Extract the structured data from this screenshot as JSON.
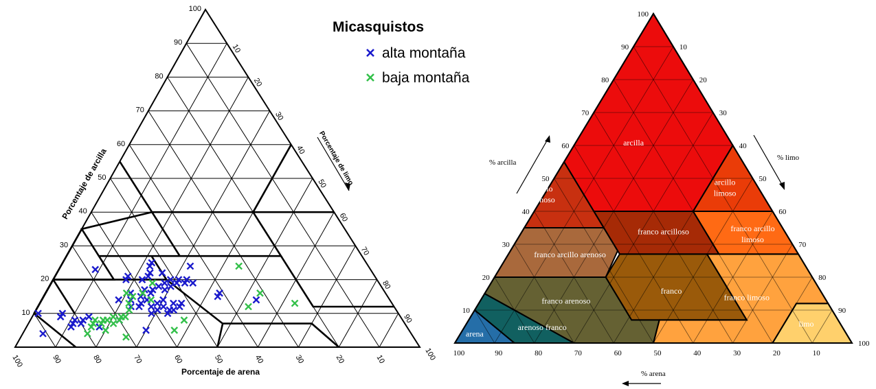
{
  "left_chart": {
    "title": "Micasquistos",
    "axis_labels": {
      "clay": "Porcentaje de arcilla",
      "silt": "Porcentaje de limo",
      "sand": "Porcentaje de arena"
    },
    "clay_ticks": [
      "10",
      "20",
      "30",
      "40",
      "50",
      "60",
      "70",
      "80",
      "90",
      "100"
    ],
    "silt_ticks": [
      "10",
      "20",
      "30",
      "40",
      "50",
      "60",
      "70",
      "80",
      "90",
      "100"
    ],
    "sand_ticks": [
      "100",
      "90",
      "80",
      "70",
      "60",
      "50",
      "40",
      "30",
      "20",
      "10"
    ],
    "colors": {
      "alta": "#1a1acc",
      "baja": "#33c04a"
    }
  },
  "chart_data": [
    {
      "type": "scatter",
      "title": "Micasquistos",
      "coordinate_system": "ternary",
      "components": [
        "sand",
        "silt",
        "clay"
      ],
      "legend_placement": "top-right",
      "series": [
        {
          "name": "alta montaña",
          "color": "#1a1acc",
          "marker": "x",
          "points": [
            {
              "sand": 76,
              "clay": 6
            },
            {
              "sand": 83,
              "clay": 6
            },
            {
              "sand": 82,
              "clay": 7
            },
            {
              "sand": 81,
              "clay": 8
            },
            {
              "sand": 80,
              "clay": 7
            },
            {
              "sand": 79,
              "clay": 8
            },
            {
              "sand": 84,
              "clay": 9
            },
            {
              "sand": 83,
              "clay": 10
            },
            {
              "sand": 89,
              "clay": 10
            },
            {
              "sand": 91,
              "clay": 4
            },
            {
              "sand": 77,
              "clay": 9
            },
            {
              "sand": 70,
              "clay": 8
            },
            {
              "sand": 65,
              "clay": 5
            },
            {
              "sand": 64,
              "clay": 14
            },
            {
              "sand": 63,
              "clay": 12
            },
            {
              "sand": 62,
              "clay": 13
            },
            {
              "sand": 61,
              "clay": 15
            },
            {
              "sand": 60,
              "clay": 12
            },
            {
              "sand": 59,
              "clay": 11
            },
            {
              "sand": 58,
              "clay": 13
            },
            {
              "sand": 57,
              "clay": 12
            },
            {
              "sand": 56,
              "clay": 14
            },
            {
              "sand": 55,
              "clay": 11
            },
            {
              "sand": 54,
              "clay": 13
            },
            {
              "sand": 53,
              "clay": 12
            },
            {
              "sand": 52,
              "clay": 13
            },
            {
              "sand": 60,
              "clay": 16
            },
            {
              "sand": 59,
              "clay": 17
            },
            {
              "sand": 58,
              "clay": 16
            },
            {
              "sand": 57,
              "clay": 17
            },
            {
              "sand": 55,
              "clay": 18
            },
            {
              "sand": 54,
              "clay": 17
            },
            {
              "sand": 53,
              "clay": 19
            },
            {
              "sand": 52,
              "clay": 18
            },
            {
              "sand": 51,
              "clay": 20
            },
            {
              "sand": 50,
              "clay": 19
            },
            {
              "sand": 49,
              "clay": 20
            },
            {
              "sand": 48,
              "clay": 19
            },
            {
              "sand": 47,
              "clay": 20
            },
            {
              "sand": 46,
              "clay": 19
            },
            {
              "sand": 62,
              "clay": 20
            },
            {
              "sand": 61,
              "clay": 21
            },
            {
              "sand": 56,
              "clay": 21
            },
            {
              "sand": 55,
              "clay": 22
            },
            {
              "sand": 53,
              "clay": 25
            },
            {
              "sand": 54,
              "clay": 24
            },
            {
              "sand": 52,
              "clay": 22
            },
            {
              "sand": 68,
              "clay": 23
            },
            {
              "sand": 67,
              "clay": 14
            },
            {
              "sand": 65,
              "clay": 12
            },
            {
              "sand": 44,
              "clay": 24
            },
            {
              "sand": 42,
              "clay": 15
            },
            {
              "sand": 41,
              "clay": 16
            },
            {
              "sand": 33,
              "clay": 14
            },
            {
              "sand": 58,
              "clay": 20
            },
            {
              "sand": 57,
              "clay": 10
            },
            {
              "sand": 56,
              "clay": 11
            },
            {
              "sand": 61,
              "clay": 10
            },
            {
              "sand": 60,
              "clay": 14
            },
            {
              "sand": 63,
              "clay": 16
            }
          ]
        },
        {
          "name": "baja montaña",
          "color": "#33c04a",
          "marker": "x",
          "points": [
            {
              "sand": 80,
              "clay": 4
            },
            {
              "sand": 78,
              "clay": 6
            },
            {
              "sand": 77,
              "clay": 7
            },
            {
              "sand": 76,
              "clay": 8
            },
            {
              "sand": 75,
              "clay": 7
            },
            {
              "sand": 74,
              "clay": 8
            },
            {
              "sand": 73,
              "clay": 8
            },
            {
              "sand": 72,
              "clay": 7
            },
            {
              "sand": 71,
              "clay": 9
            },
            {
              "sand": 70,
              "clay": 8
            },
            {
              "sand": 69,
              "clay": 9
            },
            {
              "sand": 68,
              "clay": 9
            },
            {
              "sand": 66,
              "clay": 11
            },
            {
              "sand": 65,
              "clay": 13
            },
            {
              "sand": 64,
              "clay": 16
            },
            {
              "sand": 63,
              "clay": 15
            },
            {
              "sand": 60,
              "clay": 16
            },
            {
              "sand": 59,
              "clay": 14
            },
            {
              "sand": 58,
              "clay": 5
            },
            {
              "sand": 54,
              "clay": 8
            },
            {
              "sand": 71,
              "clay": 3
            },
            {
              "sand": 75,
              "clay": 5
            },
            {
              "sand": 32,
              "clay": 24
            },
            {
              "sand": 31,
              "clay": 16
            },
            {
              "sand": 36,
              "clay": 12
            },
            {
              "sand": 24,
              "clay": 13
            },
            {
              "sand": 56,
              "clay": 19
            }
          ]
        }
      ]
    }
  ],
  "right_chart": {
    "axis_labels": {
      "clay": "% arcilla",
      "silt": "% limo",
      "sand": "% arena"
    },
    "clay_ticks": [
      "10",
      "20",
      "30",
      "40",
      "50",
      "60",
      "70",
      "80",
      "90",
      "100"
    ],
    "silt_ticks": [
      "10",
      "20",
      "30",
      "40",
      "50",
      "60",
      "70",
      "80",
      "90",
      "100"
    ],
    "sand_ticks": [
      "100",
      "90",
      "80",
      "70",
      "60",
      "50",
      "40",
      "30",
      "20",
      "10"
    ],
    "zones": [
      {
        "label": "arcilla",
        "color": "#ec0c0c"
      },
      {
        "label": "arcillo arenoso",
        "color": "#c83010"
      },
      {
        "label": "arcillo limoso",
        "color": "#ea3c08"
      },
      {
        "label": "franco arcilloso",
        "color": "#a62a06"
      },
      {
        "label": "franco arcillo limoso",
        "color": "#ff6a14"
      },
      {
        "label": "franco arcillo arenoso",
        "color": "#a9693c"
      },
      {
        "label": "franco arenoso",
        "color": "#656133"
      },
      {
        "label": "franco",
        "color": "#9a5a0a"
      },
      {
        "label": "franco limoso",
        "color": "#ffa23e"
      },
      {
        "label": "limo",
        "color": "#ffd06c"
      },
      {
        "label": "arenoso franco",
        "color": "#116060"
      },
      {
        "label": "arena",
        "color": "#256ea8"
      }
    ]
  }
}
